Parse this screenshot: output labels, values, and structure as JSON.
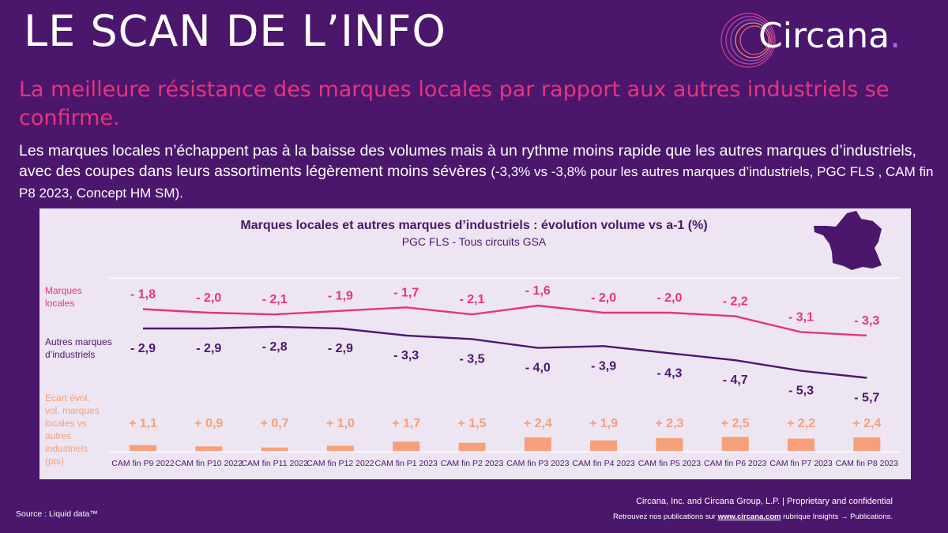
{
  "header": {
    "title": "LE SCAN DE L’INFO",
    "logo_text": "Circana",
    "logo_dot": "."
  },
  "subtitle": "La meilleure résistance des marques locales par rapport aux autres industriels se confirme.",
  "lead": {
    "part1": "Les marques locales n’échappent pas à la baisse des volumes mais à un rythme moins rapide que les autres marques d’industriels, avec des coupes dans leurs assortiments légèrement moins sévères ",
    "part2": "(-3,3% vs -3,8% pour les autres marques d’industriels, PGC FLS , CAM fin P8 2023, Concept HM SM)."
  },
  "chart_data": {
    "type": "line",
    "title": "Marques locales et autres marques d’industriels : évolution volume vs a-1 (%)",
    "subtitle": "PGC FLS - Tous circuits GSA",
    "categories": [
      "CAM fin P9 2022",
      "CAM fin P10 2022",
      "CAM fin P11 2022",
      "CAM fin P12 2022",
      "CAM fin P1 2023",
      "CAM fin P2 2023",
      "CAM fin P3 2023",
      "CAM fin P4 2023",
      "CAM fin P5 2023",
      "CAM fin P6 2023",
      "CAM fin P7 2023",
      "CAM fin P8 2023"
    ],
    "series": [
      {
        "name": "Marques locales",
        "color": "#e6347b",
        "values": [
          -1.8,
          -2.0,
          -2.1,
          -1.9,
          -1.7,
          -2.1,
          -1.6,
          -2.0,
          -2.0,
          -2.2,
          -3.1,
          -3.3
        ],
        "labels": [
          "- 1,8",
          "- 2,0",
          "- 2,1",
          "- 1,9",
          "- 1,7",
          "- 2,1",
          "- 1,6",
          "- 2,0",
          "- 2,0",
          "- 2,2",
          "- 3,1",
          "- 3,3"
        ]
      },
      {
        "name": "Autres marques d’industriels",
        "color": "#4b176c",
        "values": [
          -2.9,
          -2.9,
          -2.8,
          -2.9,
          -3.3,
          -3.5,
          -4.0,
          -3.9,
          -4.3,
          -4.7,
          -5.3,
          -5.7
        ],
        "labels": [
          "- 2,9",
          "- 2,9",
          "- 2,8",
          "- 2,9",
          "- 3,3",
          "- 3,5",
          "- 4,0",
          "- 3,9",
          "- 4,3",
          "- 4,7",
          "- 5,3",
          "- 5,7"
        ]
      }
    ],
    "gap": {
      "name": "Ecart évol. vol. marques locales vs autres industriels (pts)",
      "color": "#f5a07a",
      "values": [
        1.1,
        0.9,
        0.7,
        1.0,
        1.7,
        1.5,
        2.4,
        1.9,
        2.3,
        2.5,
        2.2,
        2.4
      ],
      "labels": [
        "+ 1,1",
        "+ 0,9",
        "+ 0,7",
        "+ 1,0",
        "+ 1,7",
        "+ 1,5",
        "+ 2,4",
        "+ 1,9",
        "+ 2,3",
        "+ 2,5",
        "+ 2,2",
        "+ 2,4"
      ]
    },
    "row_labels": {
      "ml": [
        "Marques",
        "locales"
      ],
      "am": [
        "Autres marques",
        "d’industriels"
      ],
      "gap": [
        "Ecart évol.",
        "vol. marques",
        "locales vs",
        "autres",
        "industriels",
        "(pts)"
      ]
    }
  },
  "footer": {
    "source": "Source : Liquid data™",
    "line1": "Circana, Inc. and Circana Group, L.P. |  Proprietary and confidential",
    "line2_pre": "Retrouvez nos publications sur ",
    "line2_link": "www.circana.com",
    "line2_post": " rubrique Insights → Publications."
  }
}
